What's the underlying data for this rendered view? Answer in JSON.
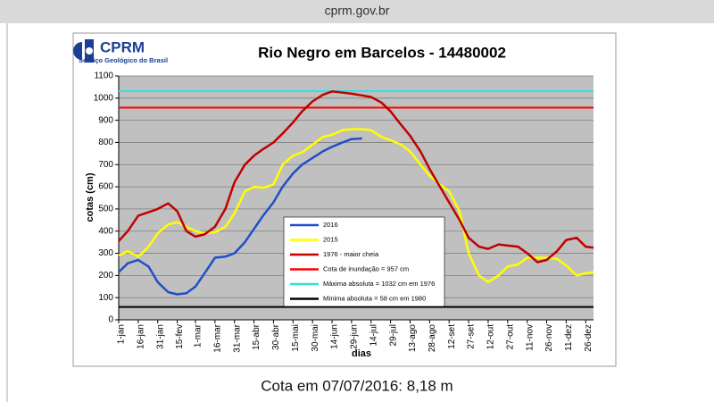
{
  "browser": {
    "url": "cprm.gov.br"
  },
  "logo": {
    "name": "CPRM",
    "subtitle": "Serviço Geológico do Brasil"
  },
  "chart_data": {
    "type": "line",
    "title": "Rio Negro em Barcelos -  14480002",
    "xlabel": "dias",
    "ylabel": "cotas (cm)",
    "x": [
      1,
      8,
      16,
      24,
      31,
      39,
      46,
      53,
      60,
      67,
      75,
      83,
      90,
      98,
      105,
      112,
      120,
      127,
      135,
      142,
      150,
      158,
      165,
      173,
      180,
      188,
      195,
      203,
      210,
      218,
      225,
      233,
      240,
      248,
      255,
      263,
      270,
      278,
      285,
      293,
      300,
      308,
      315,
      323,
      330,
      338,
      345,
      353,
      360,
      366
    ],
    "xlim": [
      1,
      366
    ],
    "xticks": [
      {
        "value": 1,
        "label": "1-jan"
      },
      {
        "value": 16,
        "label": "16-jan"
      },
      {
        "value": 31,
        "label": "31-jan"
      },
      {
        "value": 46,
        "label": "15-fev"
      },
      {
        "value": 60,
        "label": "1-mar"
      },
      {
        "value": 75,
        "label": "16-mar"
      },
      {
        "value": 90,
        "label": "31-mar"
      },
      {
        "value": 105,
        "label": "15-abr"
      },
      {
        "value": 120,
        "label": "30-abr"
      },
      {
        "value": 135,
        "label": "15-mai"
      },
      {
        "value": 150,
        "label": "30-mai"
      },
      {
        "value": 165,
        "label": "14-jun"
      },
      {
        "value": 180,
        "label": "29-jun"
      },
      {
        "value": 195,
        "label": "14-jul"
      },
      {
        "value": 210,
        "label": "29-jul"
      },
      {
        "value": 225,
        "label": "13-ago"
      },
      {
        "value": 240,
        "label": "28-ago"
      },
      {
        "value": 255,
        "label": "12-set"
      },
      {
        "value": 270,
        "label": "27-set"
      },
      {
        "value": 285,
        "label": "12-out"
      },
      {
        "value": 300,
        "label": "27-out"
      },
      {
        "value": 315,
        "label": "11-nov"
      },
      {
        "value": 330,
        "label": "26-nov"
      },
      {
        "value": 345,
        "label": "11-dez"
      },
      {
        "value": 360,
        "label": "26-dez"
      }
    ],
    "ylim": [
      0,
      1100
    ],
    "yticks": [
      0,
      100,
      200,
      300,
      400,
      500,
      600,
      700,
      800,
      900,
      1000,
      1100
    ],
    "grid": true,
    "legend": "center",
    "series": [
      {
        "name": "2016",
        "color": "#1f4fc8",
        "values": [
          215,
          255,
          270,
          240,
          170,
          125,
          115,
          120,
          150,
          210,
          280,
          285,
          300,
          350,
          410,
          470,
          530,
          600,
          660,
          700,
          730,
          760,
          780,
          800,
          815,
          818,
          null,
          null,
          null,
          null,
          null,
          null,
          null,
          null,
          null,
          null,
          null,
          null,
          null,
          null,
          null,
          null,
          null,
          null,
          null,
          null,
          null,
          null,
          null,
          null
        ]
      },
      {
        "name": "2015",
        "color": "#ffff00",
        "values": [
          290,
          310,
          285,
          330,
          390,
          430,
          440,
          420,
          400,
          390,
          395,
          420,
          480,
          580,
          600,
          595,
          610,
          700,
          740,
          755,
          790,
          825,
          835,
          855,
          860,
          860,
          855,
          825,
          810,
          790,
          760,
          700,
          650,
          610,
          580,
          490,
          300,
          200,
          170,
          200,
          240,
          250,
          280,
          280,
          280,
          275,
          245,
          200,
          210,
          215
        ]
      },
      {
        "name": "1976 - maior cheia",
        "color": "#c00000",
        "values": [
          355,
          400,
          470,
          485,
          500,
          525,
          490,
          400,
          375,
          385,
          420,
          500,
          620,
          700,
          740,
          770,
          800,
          840,
          890,
          940,
          985,
          1015,
          1030,
          1025,
          1020,
          1012,
          1005,
          980,
          940,
          880,
          830,
          760,
          680,
          600,
          530,
          450,
          370,
          330,
          320,
          340,
          335,
          330,
          300,
          260,
          270,
          310,
          360,
          370,
          330,
          325
        ]
      }
    ],
    "reference_lines": [
      {
        "name": "Cota de inundação = 957 cm",
        "color": "#ff0000",
        "value": 957
      },
      {
        "name": "Máxima absoluta = 1032 cm em 1976",
        "color": "#33e0e0",
        "value": 1032
      },
      {
        "name": "Mínima absoluta = 58 cm em 1980",
        "color": "#000000",
        "value": 58
      }
    ]
  },
  "caption": "Cota em 07/07/2016: 8,18 m"
}
